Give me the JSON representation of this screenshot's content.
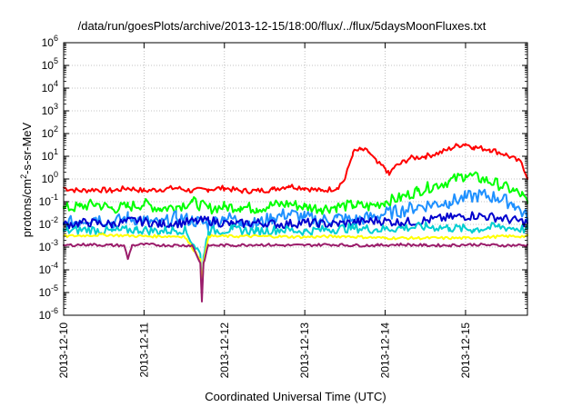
{
  "chart_data": {
    "type": "line",
    "title": "/data/run/goesPlots/archive/2013-12-15/18:00/flux/../flux/5daysMoonFluxes.txt",
    "xlabel": "Coordinated Universal Time (UTC)",
    "ylabel_base": "protons/cm",
    "ylabel_exp": "2",
    "ylabel_tail": "-s-sr-MeV",
    "y_scale": "log",
    "ylim": [
      1e-06,
      1000000.0
    ],
    "xlim": [
      0,
      5.77
    ],
    "grid": true,
    "legend": "none",
    "x_ticks": [
      {
        "pos": 0,
        "label": "2013-12-10"
      },
      {
        "pos": 1,
        "label": "2013-12-11"
      },
      {
        "pos": 2,
        "label": "2013-12-12"
      },
      {
        "pos": 3,
        "label": "2013-12-13"
      },
      {
        "pos": 4,
        "label": "2013-12-14"
      },
      {
        "pos": 5,
        "label": "2013-12-15"
      }
    ],
    "y_ticks": [
      {
        "exp": 6,
        "label_base": "10",
        "label_exp": "6"
      },
      {
        "exp": 5,
        "label_base": "10",
        "label_exp": "5"
      },
      {
        "exp": 4,
        "label_base": "10",
        "label_exp": "4"
      },
      {
        "exp": 3,
        "label_base": "10",
        "label_exp": "3"
      },
      {
        "exp": 2,
        "label_base": "10",
        "label_exp": "2"
      },
      {
        "exp": 1,
        "label_base": "10",
        "label_exp": "1"
      },
      {
        "exp": 0,
        "label_base": "10",
        "label_exp": "0"
      },
      {
        "exp": -1,
        "label_base": "10",
        "label_exp": "-1"
      },
      {
        "exp": -2,
        "label_base": "10",
        "label_exp": "-2"
      },
      {
        "exp": -3,
        "label_base": "10",
        "label_exp": "-3"
      },
      {
        "exp": -4,
        "label_base": "10",
        "label_exp": "-4"
      },
      {
        "exp": -5,
        "label_base": "10",
        "label_exp": "-5"
      },
      {
        "exp": -6,
        "label_base": "10",
        "label_exp": "-6"
      }
    ],
    "series": [
      {
        "color": "#ff0000",
        "x": [
          0,
          0.2,
          0.4,
          0.6,
          0.8,
          1.0,
          1.2,
          1.4,
          1.6,
          1.8,
          2.0,
          2.2,
          2.4,
          2.6,
          2.8,
          3.0,
          3.2,
          3.4,
          3.5,
          3.6,
          3.7,
          3.8,
          3.9,
          4.0,
          4.05,
          4.1,
          4.3,
          4.5,
          4.7,
          4.9,
          5.0,
          5.1,
          5.3,
          5.5,
          5.7,
          5.77
        ],
        "y": [
          0.4,
          0.3,
          0.35,
          0.3,
          0.4,
          0.3,
          0.35,
          0.4,
          0.3,
          0.35,
          0.4,
          0.3,
          0.3,
          0.35,
          0.5,
          0.4,
          0.3,
          0.4,
          1.0,
          15,
          20,
          15,
          5,
          3,
          1.5,
          3,
          8,
          10,
          15,
          30,
          35,
          25,
          20,
          12,
          5,
          1.2
        ]
      },
      {
        "color": "#00ff00",
        "x": [
          0,
          0.2,
          0.4,
          0.6,
          0.8,
          1.0,
          1.2,
          1.4,
          1.6,
          1.8,
          2.0,
          2.2,
          2.4,
          2.6,
          2.8,
          3.0,
          3.2,
          3.4,
          3.6,
          3.8,
          4.0,
          4.2,
          4.4,
          4.6,
          4.8,
          5.0,
          5.2,
          5.4,
          5.6,
          5.7,
          5.77
        ],
        "y": [
          0.05,
          0.06,
          0.08,
          0.05,
          0.06,
          0.08,
          0.05,
          0.06,
          0.1,
          0.05,
          0.06,
          0.06,
          0.05,
          0.07,
          0.08,
          0.06,
          0.05,
          0.06,
          0.07,
          0.06,
          0.1,
          0.15,
          0.3,
          0.5,
          0.8,
          1.5,
          1.0,
          0.6,
          0.3,
          0.2,
          0.08
        ]
      },
      {
        "color": "#1e90ff",
        "x": [
          0,
          0.2,
          0.4,
          0.6,
          0.8,
          1.0,
          1.2,
          1.4,
          1.6,
          1.8,
          2.0,
          2.2,
          2.4,
          2.6,
          2.8,
          3.0,
          3.2,
          3.4,
          3.6,
          3.8,
          4.0,
          4.2,
          4.4,
          4.6,
          4.8,
          5.0,
          5.2,
          5.4,
          5.6,
          5.77
        ],
        "y": [
          0.01,
          0.015,
          0.02,
          0.012,
          0.02,
          0.015,
          0.01,
          0.02,
          0.015,
          0.01,
          0.02,
          0.015,
          0.01,
          0.02,
          0.03,
          0.02,
          0.015,
          0.02,
          0.015,
          0.02,
          0.03,
          0.04,
          0.06,
          0.08,
          0.1,
          0.15,
          0.2,
          0.15,
          0.08,
          0.02
        ]
      },
      {
        "color": "#0000cd",
        "x": [
          0,
          0.3,
          0.6,
          0.9,
          1.2,
          1.5,
          1.8,
          2.1,
          2.4,
          2.7,
          3.0,
          3.3,
          3.6,
          3.9,
          4.2,
          4.5,
          4.8,
          5.1,
          5.4,
          5.77
        ],
        "y": [
          0.01,
          0.012,
          0.01,
          0.015,
          0.01,
          0.012,
          0.015,
          0.01,
          0.012,
          0.01,
          0.012,
          0.01,
          0.012,
          0.015,
          0.012,
          0.015,
          0.02,
          0.025,
          0.02,
          0.012
        ]
      },
      {
        "color": "#00ced1",
        "x": [
          0,
          0.3,
          0.6,
          0.9,
          1.2,
          1.5,
          1.7,
          1.72,
          1.74,
          1.8,
          2.1,
          2.4,
          2.7,
          3.0,
          3.3,
          3.6,
          3.9,
          4.2,
          4.5,
          4.8,
          5.1,
          5.4,
          5.77
        ],
        "y": [
          0.005,
          0.006,
          0.005,
          0.006,
          0.005,
          0.006,
          0.0005,
          1e-05,
          0.0004,
          0.005,
          0.006,
          0.005,
          0.006,
          0.005,
          0.006,
          0.007,
          0.006,
          0.007,
          0.008,
          0.007,
          0.006,
          0.008,
          0.006
        ]
      },
      {
        "color": "#ffff00",
        "x": [
          0,
          0.5,
          1.0,
          1.5,
          1.7,
          1.72,
          1.74,
          1.8,
          2.0,
          2.5,
          3.0,
          3.5,
          4.0,
          4.5,
          5.0,
          5.5,
          5.77
        ],
        "y": [
          0.003,
          0.0035,
          0.003,
          0.003,
          0.0003,
          2e-05,
          0.0002,
          0.003,
          0.003,
          0.003,
          0.0028,
          0.003,
          0.0025,
          0.0025,
          0.0025,
          0.003,
          0.003
        ]
      },
      {
        "color": "#9b1d6b",
        "x": [
          0,
          0.3,
          0.6,
          0.75,
          0.8,
          0.85,
          1.0,
          1.3,
          1.6,
          1.7,
          1.72,
          1.74,
          1.8,
          2.1,
          2.4,
          2.7,
          3.0,
          3.3,
          3.6,
          3.9,
          4.2,
          4.5,
          4.8,
          5.1,
          5.4,
          5.77
        ],
        "y": [
          0.0012,
          0.0013,
          0.0012,
          0.0012,
          0.0003,
          0.0012,
          0.0013,
          0.0012,
          0.0012,
          0.0002,
          4e-06,
          0.0002,
          0.0012,
          0.0012,
          0.0013,
          0.0012,
          0.0012,
          0.0013,
          0.0012,
          0.0012,
          0.0013,
          0.0012,
          0.0012,
          0.0013,
          0.0012,
          0.0012
        ]
      }
    ]
  }
}
